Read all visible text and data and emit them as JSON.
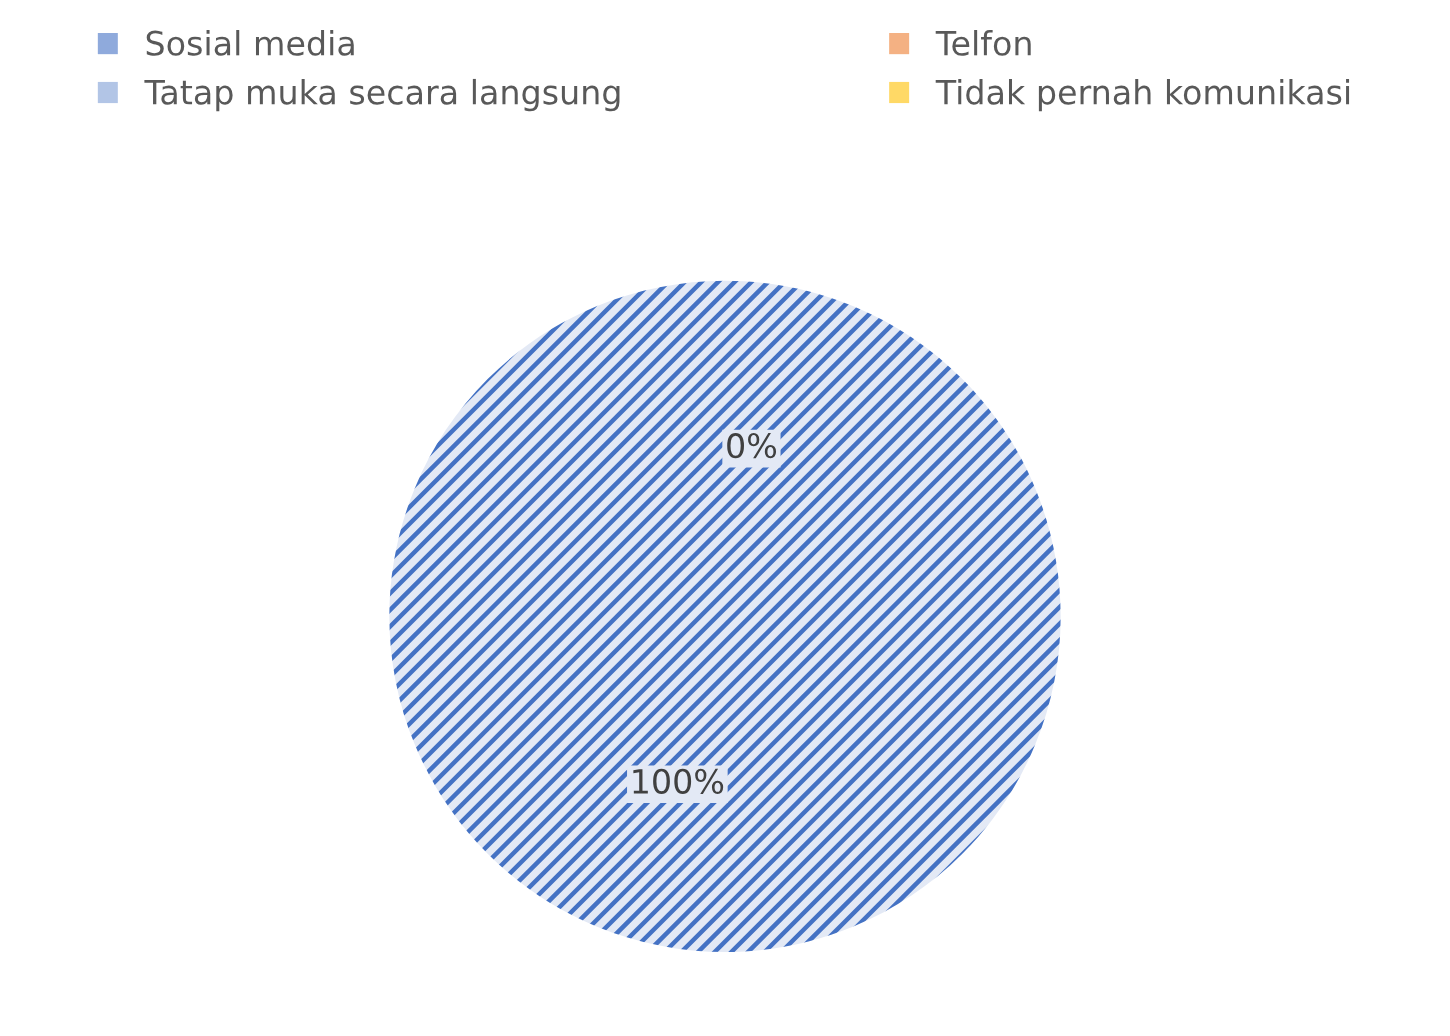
{
  "chart_data": {
    "type": "pie",
    "categories": [
      "Sosial media",
      "Telfon",
      "Tatap muka secara langsung",
      "Tidak pernah komunikasi"
    ],
    "values": [
      100,
      0,
      0,
      0
    ],
    "value_labels": [
      "100%",
      "0%",
      null,
      null
    ],
    "colors": [
      "#4472c4",
      "#ed7d31",
      "#7f9fd6",
      "#ffc000"
    ],
    "legend": "top"
  }
}
